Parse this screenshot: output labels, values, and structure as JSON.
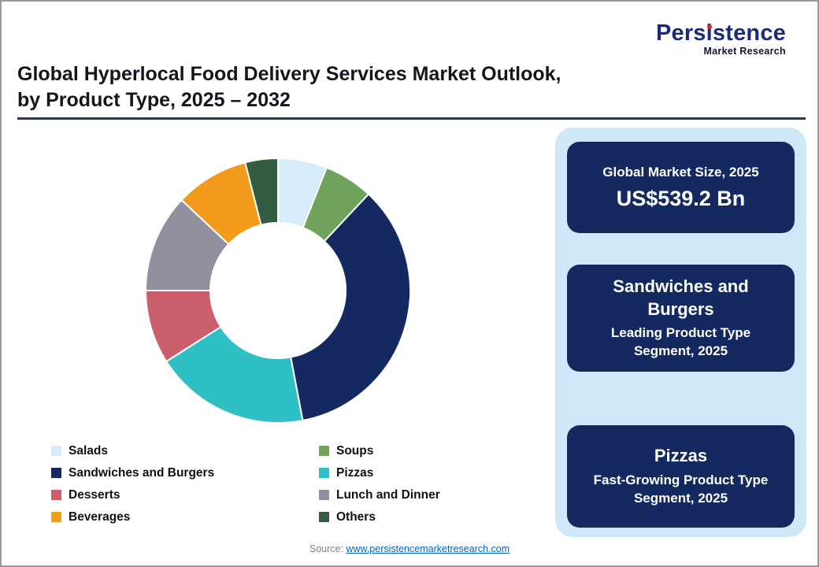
{
  "logo": {
    "part1": "Pers",
    "part2": "i",
    "part3": "stence",
    "sub": "Market Research"
  },
  "header": {
    "title_line1": "Global Hyperlocal Food Delivery Services Market Outlook,",
    "title_line2": "by Product Type, 2025 – 2032"
  },
  "chart_data": {
    "type": "pie",
    "subtype": "donut",
    "title": "Global Hyperlocal Food Delivery Services Market Outlook, by Product Type, 2025 – 2032",
    "categories": [
      "Salads",
      "Soups",
      "Sandwiches and Burgers",
      "Pizzas",
      "Desserts",
      "Lunch and Dinner",
      "Beverages",
      "Others"
    ],
    "values": [
      6,
      6,
      35,
      19,
      9,
      12,
      9,
      4
    ],
    "colors": [
      "#d6ecf9",
      "#6fa35b",
      "#132960",
      "#2fc0c6",
      "#cb5f6d",
      "#928fa0",
      "#f39b1d",
      "#335c40"
    ],
    "legend_position": "bottom",
    "start_angle_deg": -90,
    "hole_ratio": 0.5,
    "note": "no numeric labels shown in figure; values are percent shares estimated from arc sizes"
  },
  "sidebar": {
    "cards": [
      {
        "title": "Global Market Size, 2025",
        "value": "US$539.2 Bn"
      },
      {
        "title": "Sandwiches and Burgers",
        "subtitle": "Leading Product Type Segment, 2025"
      },
      {
        "title": "Pizzas",
        "subtitle": "Fast-Growing Product Type Segment, 2025"
      }
    ]
  },
  "footer": {
    "source_label": "Source: ",
    "source_link": "www.persistencemarketresearch.com"
  }
}
